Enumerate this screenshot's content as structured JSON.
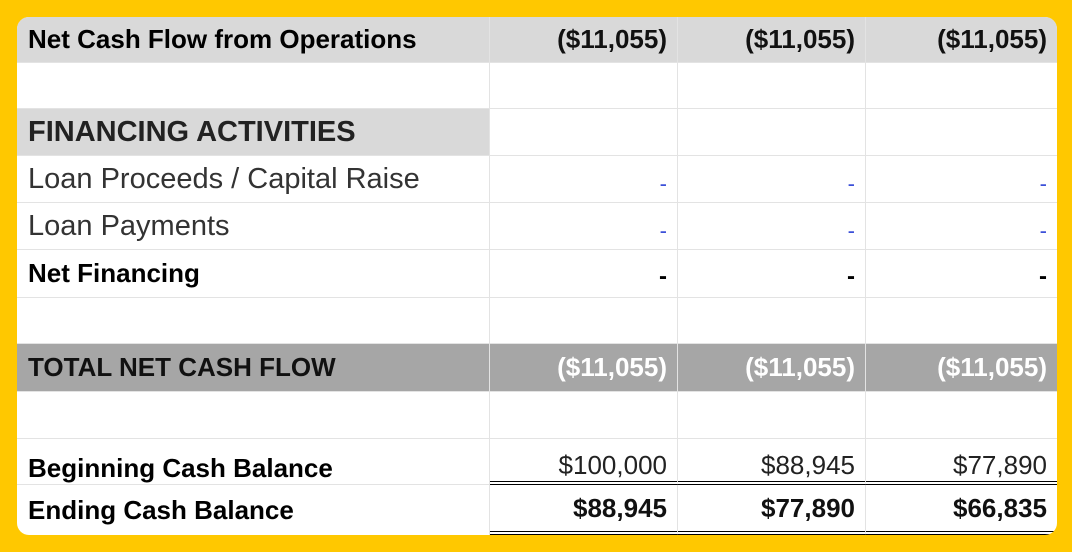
{
  "rows": {
    "net_ops": {
      "label": "Net Cash Flow from Operations",
      "values": [
        "($11,055)",
        "($11,055)",
        "($11,055)"
      ]
    },
    "financing_header": {
      "label": "FINANCING ACTIVITIES"
    },
    "loan_proceeds": {
      "label": "Loan Proceeds / Capital Raise",
      "values": [
        "-",
        "-",
        "-"
      ]
    },
    "loan_payments": {
      "label": "Loan Payments",
      "values": [
        "-",
        "-",
        "-"
      ]
    },
    "net_financing": {
      "label": "Net Financing",
      "values": [
        "-",
        "-",
        "-"
      ]
    },
    "total_net": {
      "label": "TOTAL NET CASH FLOW",
      "values": [
        "($11,055)",
        "($11,055)",
        "($11,055)"
      ]
    },
    "beginning": {
      "label": "Beginning Cash Balance",
      "values": [
        "$100,000",
        "$88,945",
        "$77,890"
      ]
    },
    "ending": {
      "label": "Ending Cash Balance",
      "values": [
        "$88,945",
        "$77,890",
        "$66,835"
      ]
    }
  },
  "colors": {
    "background": "#ffc800",
    "light_gray_fill": "#d9d9d9",
    "dark_gray_fill": "#a6a6a6",
    "blue_dash": "#3b4fd8"
  }
}
